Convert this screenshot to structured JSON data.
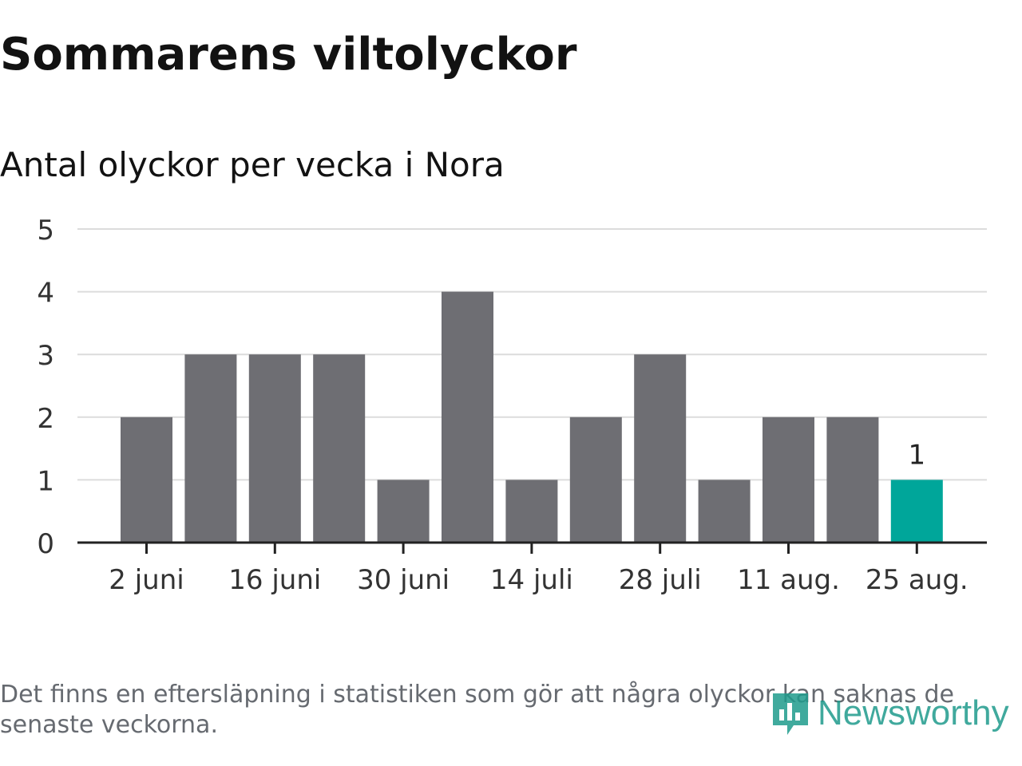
{
  "title": "Sommarens viltolyckor",
  "subtitle": "Antal olyckor per vecka i Nora",
  "footnote": "Det finns en eftersläpning i statistiken som gör att några olyckor kan saknas de senaste veckorna.",
  "logo": {
    "text": "Newsworthy",
    "icon": "bar-chart-logo-icon",
    "color": "#1f9b8c"
  },
  "chart_data": {
    "type": "bar",
    "title": "Sommarens viltolyckor",
    "subtitle": "Antal olyckor per vecka i Nora",
    "values": [
      2,
      3,
      3,
      3,
      1,
      4,
      1,
      2,
      3,
      1,
      2,
      2,
      1
    ],
    "x_tick_labels": [
      "2 juni",
      "16 juni",
      "30 juni",
      "14 juli",
      "28 juli",
      "11 aug.",
      "25 aug."
    ],
    "ylim": [
      0,
      5
    ],
    "y_ticks": [
      0,
      1,
      2,
      3,
      4,
      5
    ],
    "grid": true,
    "highlight_last": true,
    "colors": {
      "bar": "#6e6e73",
      "highlight": "#00a69a",
      "grid": "#dcdcdc",
      "axis": "#222222"
    },
    "annotations": [
      {
        "bar_index": 12,
        "text": "1"
      }
    ]
  }
}
